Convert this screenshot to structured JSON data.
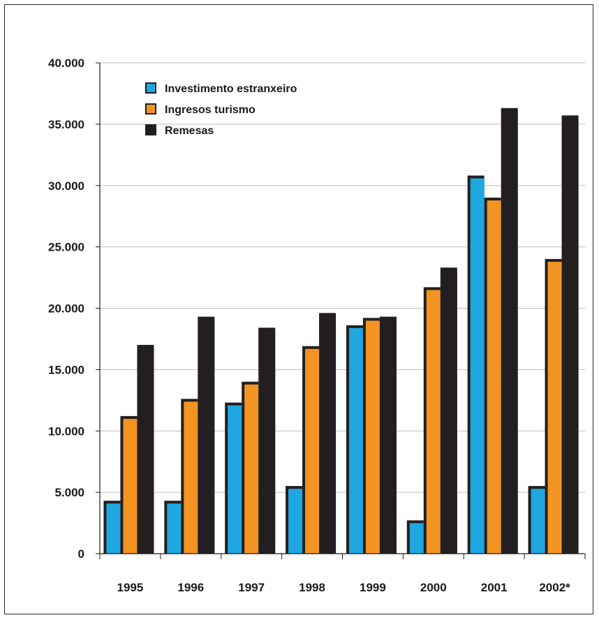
{
  "chart_data": {
    "type": "bar",
    "categories": [
      "1995",
      "1996",
      "1997",
      "1998",
      "1999",
      "2000",
      "2001",
      "2002*"
    ],
    "series": [
      {
        "name": "Investimento estranxeiro",
        "color": "#1ea7e1",
        "values": [
          4200,
          4200,
          12200,
          5400,
          18500,
          2600,
          30700,
          5400
        ]
      },
      {
        "name": "Ingresos turismo",
        "color": "#f39422",
        "values": [
          11100,
          12500,
          13900,
          16800,
          19100,
          21600,
          28900,
          23900
        ]
      },
      {
        "name": "Remesas",
        "color": "#231f20",
        "values": [
          16900,
          19200,
          18300,
          19500,
          19200,
          23200,
          36200,
          35600
        ]
      }
    ],
    "ylim": [
      0,
      40000
    ],
    "yticks": [
      {
        "value": 0,
        "label": "0"
      },
      {
        "value": 5000,
        "label": "5.000"
      },
      {
        "value": 10000,
        "label": "10.000"
      },
      {
        "value": 15000,
        "label": "15.000"
      },
      {
        "value": 20000,
        "label": "20.000"
      },
      {
        "value": 25000,
        "label": "25.000"
      },
      {
        "value": 30000,
        "label": "30.000"
      },
      {
        "value": 35000,
        "label": "35.000"
      },
      {
        "value": 40000,
        "label": "40.000"
      }
    ],
    "grid": true,
    "legend": "top-left"
  }
}
